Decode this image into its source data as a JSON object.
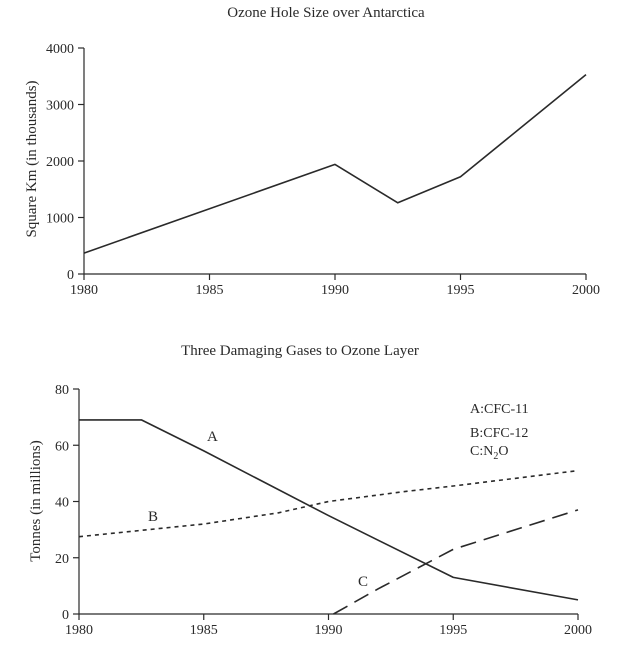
{
  "chart_data": [
    {
      "type": "line",
      "title": "Ozone Hole Size over Antarctica",
      "xlabel": "",
      "ylabel": "Square Km (in thousands)",
      "xlim": [
        1980,
        2000
      ],
      "ylim": [
        0,
        4000
      ],
      "xticks": [
        1980,
        1985,
        1990,
        1995,
        2000
      ],
      "yticks": [
        0,
        1000,
        2000,
        3000,
        4000
      ],
      "x_tick_labels": [
        "1980",
        "1985",
        "1990",
        "1995",
        "2000"
      ],
      "y_tick_labels": [
        "0",
        "1000",
        "2000",
        "3000",
        "4000"
      ],
      "grid": false,
      "series": [
        {
          "style": "solid",
          "x": [
            1980,
            1990,
            1992.5,
            1995,
            2000
          ],
          "y": [
            370,
            1940,
            1260,
            1720,
            3530
          ]
        }
      ]
    },
    {
      "type": "line",
      "title": "Three Damaging Gases to Ozone Layer",
      "xlabel": "",
      "ylabel": "Tonnes (in millions)",
      "xlim": [
        1980,
        2000
      ],
      "ylim": [
        0,
        80
      ],
      "xticks": [
        1980,
        1985,
        1990,
        1995,
        2000
      ],
      "yticks": [
        0,
        20,
        40,
        60,
        80
      ],
      "x_tick_labels": [
        "1980",
        "1985",
        "1990",
        "1995",
        "2000"
      ],
      "y_tick_labels": [
        "0",
        "20",
        "40",
        "60",
        "80"
      ],
      "grid": false,
      "legend_placement": "top-right",
      "legend": [
        "A:CFC-11",
        "B:CFC-12",
        "C:N2O"
      ],
      "series": [
        {
          "label": "A",
          "style": "solid",
          "x": [
            1980,
            1982.5,
            1985,
            1990,
            1995,
            2000
          ],
          "y": [
            69,
            69,
            58,
            35,
            13,
            5
          ]
        },
        {
          "label": "B",
          "style": "short-dash",
          "x": [
            1980,
            1985,
            1988,
            1990,
            1993,
            1995,
            2000
          ],
          "y": [
            27.5,
            32,
            36,
            40,
            43.5,
            45.5,
            51
          ]
        },
        {
          "label": "C",
          "style": "long-dash",
          "x": [
            1990.2,
            1992,
            1995,
            2000
          ],
          "y": [
            0,
            9,
            23,
            37
          ]
        }
      ]
    }
  ]
}
